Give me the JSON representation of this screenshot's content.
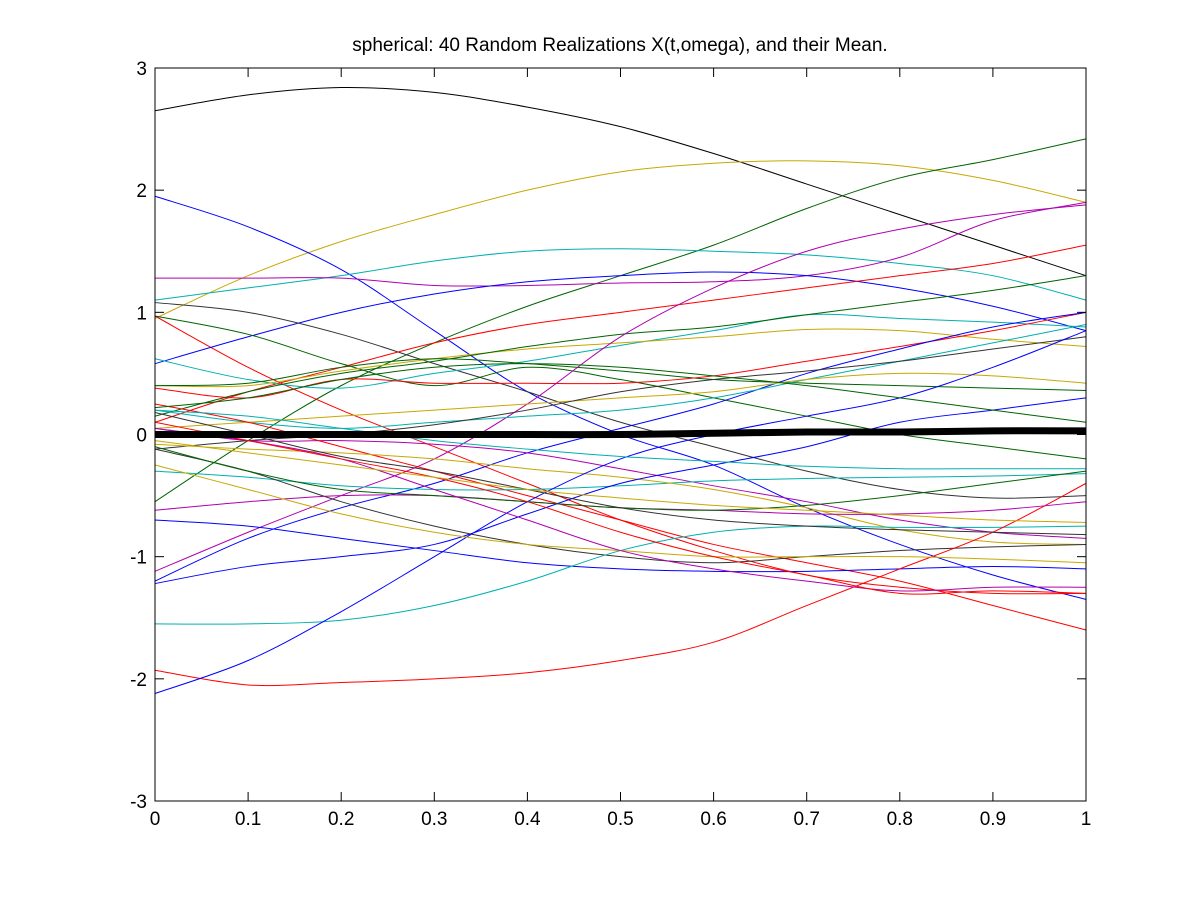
{
  "chart_data": {
    "type": "line",
    "title": "spherical: 40 Random Realizations X(t,omega), and their Mean.",
    "xlabel": "",
    "ylabel": "",
    "xlim": [
      0,
      1
    ],
    "ylim": [
      -3,
      3
    ],
    "x_ticks": [
      "0",
      "0.1",
      "0.2",
      "0.3",
      "0.4",
      "0.5",
      "0.6",
      "0.7",
      "0.8",
      "0.9",
      "1"
    ],
    "y_ticks": [
      "3",
      "2",
      "1",
      "0",
      "-1",
      "-2",
      "-3"
    ],
    "grid": false,
    "legend": "none",
    "x": [
      0,
      0.1,
      0.2,
      0.3,
      0.4,
      0.5,
      0.6,
      0.7,
      0.8,
      0.9,
      1.0
    ],
    "mean": {
      "color": "#000000",
      "values": [
        0.0,
        0.0,
        0.0,
        0.0,
        0.0,
        0.0,
        0.01,
        0.02,
        0.02,
        0.03,
        0.03
      ]
    },
    "series": [
      {
        "color": "#000000",
        "values": [
          2.65,
          2.78,
          2.84,
          2.8,
          2.68,
          2.52,
          2.3,
          2.05,
          1.8,
          1.55,
          1.3
        ]
      },
      {
        "color": "#c8a800",
        "values": [
          0.95,
          1.3,
          1.58,
          1.8,
          2.0,
          2.15,
          2.22,
          2.24,
          2.2,
          2.08,
          1.9
        ]
      },
      {
        "color": "#006400",
        "values": [
          -0.55,
          -0.05,
          0.4,
          0.75,
          1.05,
          1.3,
          1.55,
          1.85,
          2.1,
          2.25,
          2.42
        ]
      },
      {
        "color": "#0000ff",
        "values": [
          1.95,
          1.7,
          1.35,
          0.85,
          0.35,
          0.0,
          -0.25,
          -0.6,
          -0.9,
          -1.15,
          -1.35
        ]
      },
      {
        "color": "#00b0b0",
        "values": [
          1.1,
          1.2,
          1.3,
          1.42,
          1.5,
          1.52,
          1.5,
          1.47,
          1.4,
          1.3,
          1.1
        ]
      },
      {
        "color": "#b000b0",
        "values": [
          1.28,
          1.28,
          1.28,
          1.22,
          1.22,
          1.24,
          1.25,
          1.3,
          1.45,
          1.75,
          1.9
        ]
      },
      {
        "color": "#ff0000",
        "values": [
          0.97,
          0.55,
          0.2,
          -0.1,
          -0.4,
          -0.7,
          -0.95,
          -1.15,
          -1.25,
          -1.3,
          -1.3
        ]
      },
      {
        "color": "#0000ff",
        "values": [
          0.58,
          0.8,
          1.0,
          1.15,
          1.25,
          1.3,
          1.33,
          1.3,
          1.2,
          1.05,
          0.85
        ]
      },
      {
        "color": "#333333",
        "values": [
          1.08,
          1.0,
          0.82,
          0.58,
          0.35,
          0.1,
          -0.1,
          -0.3,
          -0.45,
          -0.52,
          -0.5
        ]
      },
      {
        "color": "#ff0000",
        "values": [
          0.1,
          0.35,
          0.55,
          0.75,
          0.9,
          1.0,
          1.1,
          1.2,
          1.3,
          1.4,
          1.55
        ]
      },
      {
        "color": "#006400",
        "values": [
          0.97,
          0.82,
          0.58,
          0.4,
          0.55,
          0.45,
          0.3,
          0.15,
          0.0,
          -0.1,
          -0.2
        ]
      },
      {
        "color": "#00b0b0",
        "values": [
          0.62,
          0.45,
          0.38,
          0.5,
          0.6,
          0.73,
          0.85,
          0.98,
          0.95,
          0.92,
          0.88
        ]
      },
      {
        "color": "#c8a800",
        "values": [
          0.4,
          0.4,
          0.52,
          0.62,
          0.7,
          0.75,
          0.8,
          0.86,
          0.85,
          0.78,
          0.72
        ]
      },
      {
        "color": "#006400",
        "values": [
          0.4,
          0.42,
          0.55,
          0.62,
          0.58,
          0.52,
          0.45,
          0.42,
          0.4,
          0.38,
          0.36
        ]
      },
      {
        "color": "#ff0000",
        "values": [
          0.38,
          0.3,
          0.45,
          0.42,
          0.42,
          0.42,
          0.48,
          0.6,
          0.72,
          0.85,
          1.0
        ]
      },
      {
        "color": "#006400",
        "values": [
          0.15,
          0.35,
          0.5,
          0.6,
          0.72,
          0.82,
          0.88,
          0.98,
          1.08,
          1.18,
          1.3
        ]
      },
      {
        "color": "#b000b0",
        "values": [
          -1.12,
          -0.8,
          -0.5,
          -0.2,
          0.25,
          0.8,
          1.2,
          1.5,
          1.68,
          1.8,
          1.88
        ]
      },
      {
        "color": "#0000ff",
        "values": [
          -1.2,
          -0.85,
          -0.6,
          -0.4,
          -0.15,
          0.05,
          0.25,
          0.5,
          0.7,
          0.88,
          1.0
        ]
      },
      {
        "color": "#00b0b0",
        "values": [
          0.2,
          0.1,
          0.05,
          0.1,
          0.15,
          0.2,
          0.3,
          0.45,
          0.6,
          0.75,
          0.9
        ]
      },
      {
        "color": "#c8a800",
        "values": [
          0.05,
          0.1,
          0.15,
          0.2,
          0.25,
          0.3,
          0.35,
          0.45,
          0.5,
          0.48,
          0.42
        ]
      },
      {
        "color": "#333333",
        "values": [
          -0.12,
          -0.05,
          0.0,
          0.08,
          0.2,
          0.35,
          0.45,
          0.52,
          0.6,
          0.7,
          0.8
        ]
      },
      {
        "color": "#b000b0",
        "values": [
          0.05,
          -0.05,
          -0.05,
          -0.08,
          -0.15,
          -0.28,
          -0.42,
          -0.55,
          -0.7,
          -0.8,
          -0.85
        ]
      },
      {
        "color": "#ff0000",
        "values": [
          0.25,
          0.1,
          -0.1,
          -0.3,
          -0.5,
          -0.7,
          -0.9,
          -1.05,
          -1.2,
          -1.4,
          -1.6
        ]
      },
      {
        "color": "#00b0b0",
        "values": [
          -0.3,
          -0.35,
          -0.42,
          -0.45,
          -0.45,
          -0.42,
          -0.38,
          -0.36,
          -0.35,
          -0.34,
          -0.32
        ]
      },
      {
        "color": "#c8a800",
        "values": [
          -0.08,
          -0.12,
          -0.15,
          -0.2,
          -0.28,
          -0.35,
          -0.45,
          -0.6,
          -0.78,
          -0.88,
          -0.9
        ]
      },
      {
        "color": "#0000ff",
        "values": [
          -1.22,
          -1.08,
          -1.0,
          -0.9,
          -0.65,
          -0.4,
          -0.25,
          -0.1,
          0.1,
          0.2,
          0.3
        ]
      },
      {
        "color": "#333333",
        "values": [
          -0.12,
          -0.3,
          -0.55,
          -0.75,
          -0.9,
          -1.0,
          -1.05,
          -1.0,
          -0.95,
          -0.92,
          -0.9
        ]
      },
      {
        "color": "#0000ff",
        "values": [
          -0.7,
          -0.75,
          -0.85,
          -0.95,
          -1.05,
          -1.1,
          -1.12,
          -1.12,
          -1.1,
          -1.08,
          -1.1
        ]
      },
      {
        "color": "#00b0b0",
        "values": [
          -1.55,
          -1.55,
          -1.52,
          -1.4,
          -1.2,
          -0.95,
          -0.8,
          -0.75,
          -0.76,
          -0.76,
          -0.75
        ]
      },
      {
        "color": "#ff0000",
        "values": [
          -1.93,
          -2.05,
          -2.03,
          -2.0,
          -1.95,
          -1.85,
          -1.7,
          -1.4,
          -1.1,
          -0.8,
          -0.4
        ]
      },
      {
        "color": "#0000ff",
        "values": [
          -2.12,
          -1.85,
          -1.45,
          -1.0,
          -0.55,
          -0.2,
          0.0,
          0.15,
          0.3,
          0.55,
          0.85
        ]
      },
      {
        "color": "#b000b0",
        "values": [
          -0.62,
          -0.55,
          -0.5,
          -0.5,
          -0.55,
          -0.6,
          -0.62,
          -0.65,
          -0.65,
          -0.62,
          -0.55
        ]
      },
      {
        "color": "#c8a800",
        "values": [
          -0.25,
          -0.45,
          -0.65,
          -0.8,
          -0.9,
          -0.95,
          -1.0,
          -1.0,
          -1.0,
          -1.02,
          -1.05
        ]
      },
      {
        "color": "#006400",
        "values": [
          -0.1,
          -0.3,
          -0.45,
          -0.5,
          -0.55,
          -0.6,
          -0.62,
          -0.58,
          -0.5,
          -0.4,
          -0.3
        ]
      },
      {
        "color": "#b000b0",
        "values": [
          0.05,
          -0.05,
          -0.2,
          -0.45,
          -0.7,
          -0.95,
          -1.1,
          -1.2,
          -1.28,
          -1.25,
          -1.25
        ]
      },
      {
        "color": "#ff0000",
        "values": [
          0.1,
          -0.05,
          -0.2,
          -0.35,
          -0.55,
          -0.8,
          -1.0,
          -1.15,
          -1.3,
          -1.28,
          -1.3
        ]
      },
      {
        "color": "#333333",
        "values": [
          0.18,
          0.0,
          -0.18,
          -0.3,
          -0.45,
          -0.6,
          -0.7,
          -0.75,
          -0.78,
          -0.8,
          -0.82
        ]
      },
      {
        "color": "#00b0b0",
        "values": [
          0.2,
          0.15,
          0.05,
          -0.05,
          -0.12,
          -0.18,
          -0.22,
          -0.26,
          -0.28,
          -0.28,
          -0.28
        ]
      },
      {
        "color": "#006400",
        "values": [
          0.22,
          0.3,
          0.45,
          0.55,
          0.58,
          0.55,
          0.48,
          0.4,
          0.3,
          0.2,
          0.1
        ]
      },
      {
        "color": "#c8a800",
        "values": [
          -0.05,
          -0.15,
          -0.25,
          -0.35,
          -0.45,
          -0.52,
          -0.58,
          -0.62,
          -0.66,
          -0.7,
          -0.72
        ]
      }
    ]
  }
}
